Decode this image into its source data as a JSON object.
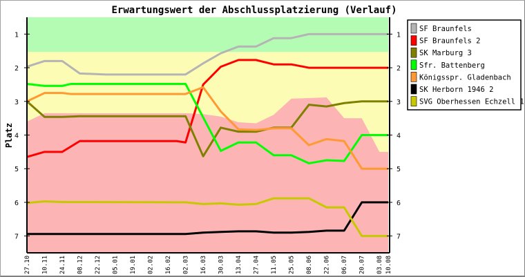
{
  "chart_data": {
    "type": "line",
    "title": "Erwartungswert der Abschlussplatzierung (Verlauf)",
    "xlabel": "",
    "ylabel": "Platz",
    "ylim": [
      0.5,
      7.5
    ],
    "y_inverted": true,
    "yticks": [
      1,
      2,
      3,
      4,
      5,
      6,
      7
    ],
    "x_unit": "weeks since 27.10",
    "xlim": [
      0,
      41
    ],
    "xtick_labels": [
      "27.10",
      "10.11",
      "24.11",
      "08.12",
      "22.12",
      "05.01",
      "19.01",
      "02.02",
      "16.02",
      "02.03",
      "16.03",
      "30.03",
      "13.04",
      "27.04",
      "11.05",
      "25.05",
      "08.06",
      "22.06",
      "06.07",
      "20.07",
      "03.08",
      "10.08"
    ],
    "xtick_weeks": [
      0,
      2,
      4,
      6,
      8,
      10,
      12,
      14,
      16,
      18,
      20,
      22,
      24,
      26,
      28,
      30,
      32,
      34,
      36,
      38,
      40,
      41
    ],
    "legend_position": "right",
    "background_bands": [
      {
        "name": "promotion",
        "color": "#b4fcb4",
        "from": 0.5,
        "to": 1.53
      },
      {
        "name": "neutral",
        "color": "#fcfcb4"
      },
      {
        "name": "relegation",
        "color": "#fcb4b4",
        "to": 7.5,
        "upper_boundary": [
          [
            0,
            3.6
          ],
          [
            2,
            3.35
          ],
          [
            18,
            3.35
          ],
          [
            20,
            3.38
          ],
          [
            22,
            3.45
          ],
          [
            24,
            3.62
          ],
          [
            26,
            3.65
          ],
          [
            28,
            3.4
          ],
          [
            30,
            2.92
          ],
          [
            34,
            2.88
          ],
          [
            36,
            3.5
          ],
          [
            38,
            3.5
          ],
          [
            40,
            4.5
          ],
          [
            41,
            4.5
          ]
        ]
      }
    ],
    "series": [
      {
        "name": "SF Braunfels",
        "color": "#b4b4b4",
        "points": [
          [
            0,
            1.97
          ],
          [
            2,
            1.8
          ],
          [
            4,
            1.8
          ],
          [
            6,
            2.17
          ],
          [
            9,
            2.2
          ],
          [
            18,
            2.2
          ],
          [
            20,
            1.87
          ],
          [
            22,
            1.57
          ],
          [
            24,
            1.37
          ],
          [
            26,
            1.37
          ],
          [
            28,
            1.12
          ],
          [
            30,
            1.12
          ],
          [
            32,
            1.0
          ],
          [
            41,
            1.0
          ]
        ]
      },
      {
        "name": "SF Braunfels 2",
        "color": "#ff0000",
        "points": [
          [
            0,
            4.65
          ],
          [
            2,
            4.5
          ],
          [
            4,
            4.5
          ],
          [
            6,
            4.18
          ],
          [
            17,
            4.18
          ],
          [
            18,
            4.22
          ],
          [
            20,
            2.5
          ],
          [
            22,
            1.97
          ],
          [
            24,
            1.77
          ],
          [
            26,
            1.77
          ],
          [
            28,
            1.9
          ],
          [
            30,
            1.9
          ],
          [
            32,
            2.0
          ],
          [
            41,
            2.0
          ]
        ]
      },
      {
        "name": "SK Marburg 3",
        "color": "#808000",
        "points": [
          [
            0,
            3.0
          ],
          [
            2,
            3.46
          ],
          [
            4,
            3.46
          ],
          [
            6,
            3.44
          ],
          [
            18,
            3.44
          ],
          [
            20,
            4.63
          ],
          [
            22,
            3.78
          ],
          [
            24,
            3.9
          ],
          [
            26,
            3.9
          ],
          [
            28,
            3.78
          ],
          [
            30,
            3.78
          ],
          [
            32,
            3.1
          ],
          [
            34,
            3.15
          ],
          [
            36,
            3.05
          ],
          [
            38,
            3.0
          ],
          [
            41,
            3.0
          ]
        ]
      },
      {
        "name": "Sfr. Battenberg",
        "color": "#00ff00",
        "points": [
          [
            0,
            2.48
          ],
          [
            2,
            2.54
          ],
          [
            4,
            2.54
          ],
          [
            5,
            2.48
          ],
          [
            18,
            2.48
          ],
          [
            22,
            4.47
          ],
          [
            24,
            4.22
          ],
          [
            26,
            4.22
          ],
          [
            28,
            4.6
          ],
          [
            30,
            4.6
          ],
          [
            32,
            4.84
          ],
          [
            34,
            4.75
          ],
          [
            36,
            4.77
          ],
          [
            38,
            4.0
          ],
          [
            41,
            4.0
          ]
        ]
      },
      {
        "name": "Königsspr. Gladenbach",
        "color": "#ff9933",
        "points": [
          [
            0,
            3.0
          ],
          [
            2,
            2.75
          ],
          [
            4,
            2.75
          ],
          [
            5,
            2.78
          ],
          [
            18,
            2.78
          ],
          [
            20,
            2.58
          ],
          [
            22,
            3.3
          ],
          [
            24,
            3.83
          ],
          [
            26,
            3.85
          ],
          [
            28,
            3.8
          ],
          [
            30,
            3.8
          ],
          [
            32,
            4.3
          ],
          [
            34,
            4.12
          ],
          [
            36,
            4.18
          ],
          [
            38,
            5.0
          ],
          [
            41,
            5.0
          ]
        ]
      },
      {
        "name": "SK Herborn 1946 2",
        "color": "#000000",
        "points": [
          [
            0,
            6.94
          ],
          [
            18,
            6.94
          ],
          [
            20,
            6.9
          ],
          [
            22,
            6.88
          ],
          [
            24,
            6.86
          ],
          [
            26,
            6.86
          ],
          [
            28,
            6.9
          ],
          [
            30,
            6.9
          ],
          [
            32,
            6.88
          ],
          [
            34,
            6.84
          ],
          [
            36,
            6.84
          ],
          [
            38,
            6.0
          ],
          [
            41,
            6.0
          ]
        ]
      },
      {
        "name": "SVG Oberhessen Echzell 1",
        "color": "#c8c800",
        "points": [
          [
            0,
            6.02
          ],
          [
            2,
            5.97
          ],
          [
            4,
            5.99
          ],
          [
            18,
            6.0
          ],
          [
            20,
            6.05
          ],
          [
            22,
            6.03
          ],
          [
            24,
            6.07
          ],
          [
            26,
            6.05
          ],
          [
            28,
            5.88
          ],
          [
            30,
            5.88
          ],
          [
            32,
            5.88
          ],
          [
            34,
            6.15
          ],
          [
            36,
            6.15
          ],
          [
            38,
            7.0
          ],
          [
            41,
            7.0
          ]
        ]
      }
    ]
  }
}
